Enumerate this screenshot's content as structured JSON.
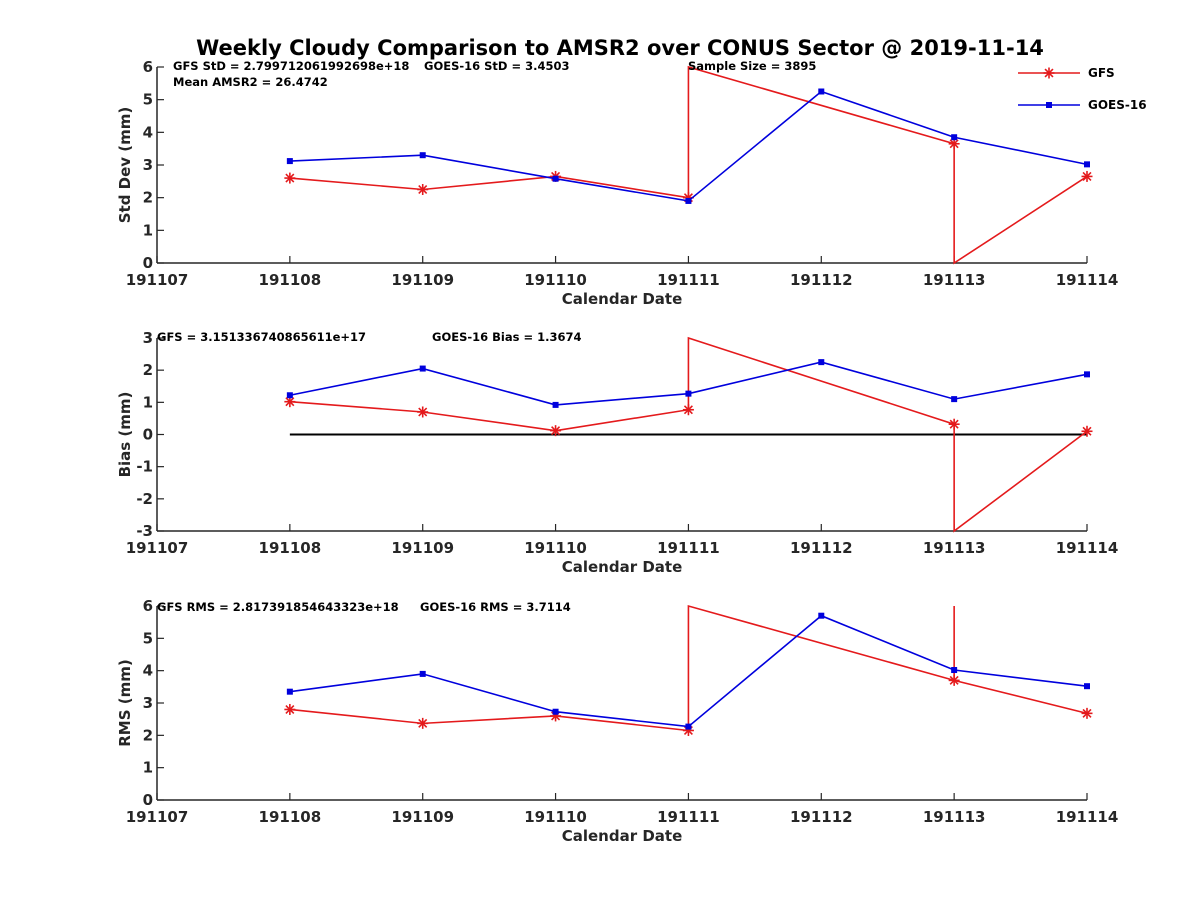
{
  "chart_data": [
    {
      "type": "line",
      "title": "Weekly Cloudy Comparison to AMSR2 over CONUS Sector @ 2019-11-14",
      "xlabel": "Calendar Date",
      "ylabel": "Std Dev (mm)",
      "xlim": [
        191107,
        191114
      ],
      "ylim": [
        0,
        6
      ],
      "yticks": [
        0,
        1,
        2,
        3,
        4,
        5,
        6
      ],
      "xticks": [
        191107,
        191108,
        191109,
        191110,
        191111,
        191112,
        191113,
        191114
      ],
      "series": [
        {
          "name": "GFS",
          "color": "#e41a1c",
          "marker": "asterisk",
          "points": [
            [
              191108,
              2.6
            ],
            [
              191109,
              2.25
            ],
            [
              191110,
              2.65
            ],
            [
              191111,
              2.0
            ],
            [
              191111,
              6.0
            ],
            [
              191113,
              3.65
            ],
            [
              191113,
              0.0
            ],
            [
              191114,
              2.65
            ]
          ]
        },
        {
          "name": "GOES-16",
          "color": "#0000dd",
          "marker": "square",
          "points": [
            [
              191108,
              3.12
            ],
            [
              191109,
              3.3
            ],
            [
              191110,
              2.58
            ],
            [
              191111,
              1.9
            ],
            [
              191112,
              5.25
            ],
            [
              191113,
              3.85
            ],
            [
              191114,
              3.02
            ]
          ]
        }
      ],
      "annotations": [
        "GFS StD = 2.799712061992698e+18",
        "GOES-16 StD = 3.4503",
        "Sample Size = 3895",
        "Mean AMSR2 = 26.4742"
      ]
    },
    {
      "type": "line",
      "xlabel": "Calendar Date",
      "ylabel": "Bias (mm)",
      "xlim": [
        191107,
        191114
      ],
      "ylim": [
        -3,
        3
      ],
      "yticks": [
        -3,
        -2,
        -1,
        0,
        1,
        2,
        3
      ],
      "xticks": [
        191107,
        191108,
        191109,
        191110,
        191111,
        191112,
        191113,
        191114
      ],
      "reference_line": {
        "y": 0,
        "from": 191108,
        "to": 191114,
        "color": "#000000"
      },
      "series": [
        {
          "name": "GFS",
          "color": "#e41a1c",
          "marker": "asterisk",
          "points": [
            [
              191108,
              1.02
            ],
            [
              191109,
              0.7
            ],
            [
              191110,
              0.12
            ],
            [
              191111,
              0.77
            ],
            [
              191111,
              3.0
            ],
            [
              191113,
              0.32
            ],
            [
              191113,
              -3.0
            ],
            [
              191114,
              0.1
            ]
          ]
        },
        {
          "name": "GOES-16",
          "color": "#0000dd",
          "marker": "square",
          "points": [
            [
              191108,
              1.22
            ],
            [
              191109,
              2.05
            ],
            [
              191110,
              0.92
            ],
            [
              191111,
              1.27
            ],
            [
              191112,
              2.25
            ],
            [
              191113,
              1.1
            ],
            [
              191114,
              1.87
            ]
          ]
        }
      ],
      "annotations": [
        "GFS = 3.151336740865611e+17",
        "GOES-16 Bias  = 1.3674"
      ]
    },
    {
      "type": "line",
      "xlabel": "Calendar Date",
      "ylabel": "RMS (mm)",
      "xlim": [
        191107,
        191114
      ],
      "ylim": [
        0,
        6
      ],
      "yticks": [
        0,
        1,
        2,
        3,
        4,
        5,
        6
      ],
      "xticks": [
        191107,
        191108,
        191109,
        191110,
        191111,
        191112,
        191113,
        191114
      ],
      "series": [
        {
          "name": "GFS",
          "color": "#e41a1c",
          "marker": "asterisk",
          "points": [
            [
              191108,
              2.8
            ],
            [
              191109,
              2.37
            ],
            [
              191110,
              2.6
            ],
            [
              191111,
              2.15
            ],
            [
              191111,
              6.0
            ],
            [
              191113,
              3.7
            ],
            [
              191113,
              6.0
            ],
            [
              191113,
              3.7
            ],
            [
              191114,
              2.68
            ]
          ]
        },
        {
          "name": "GOES-16",
          "color": "#0000dd",
          "marker": "square",
          "points": [
            [
              191108,
              3.35
            ],
            [
              191109,
              3.9
            ],
            [
              191110,
              2.73
            ],
            [
              191111,
              2.27
            ],
            [
              191112,
              5.7
            ],
            [
              191113,
              4.02
            ],
            [
              191114,
              3.52
            ]
          ]
        }
      ],
      "annotations": [
        "GFS RMS = 2.817391854643323e+18",
        "GOES-16 RMS = 3.7114"
      ]
    }
  ],
  "legend": {
    "position": "top-right",
    "entries": [
      {
        "name": "GFS",
        "color": "#e41a1c",
        "marker": "asterisk"
      },
      {
        "name": "GOES-16",
        "color": "#0000dd",
        "marker": "square"
      }
    ]
  }
}
